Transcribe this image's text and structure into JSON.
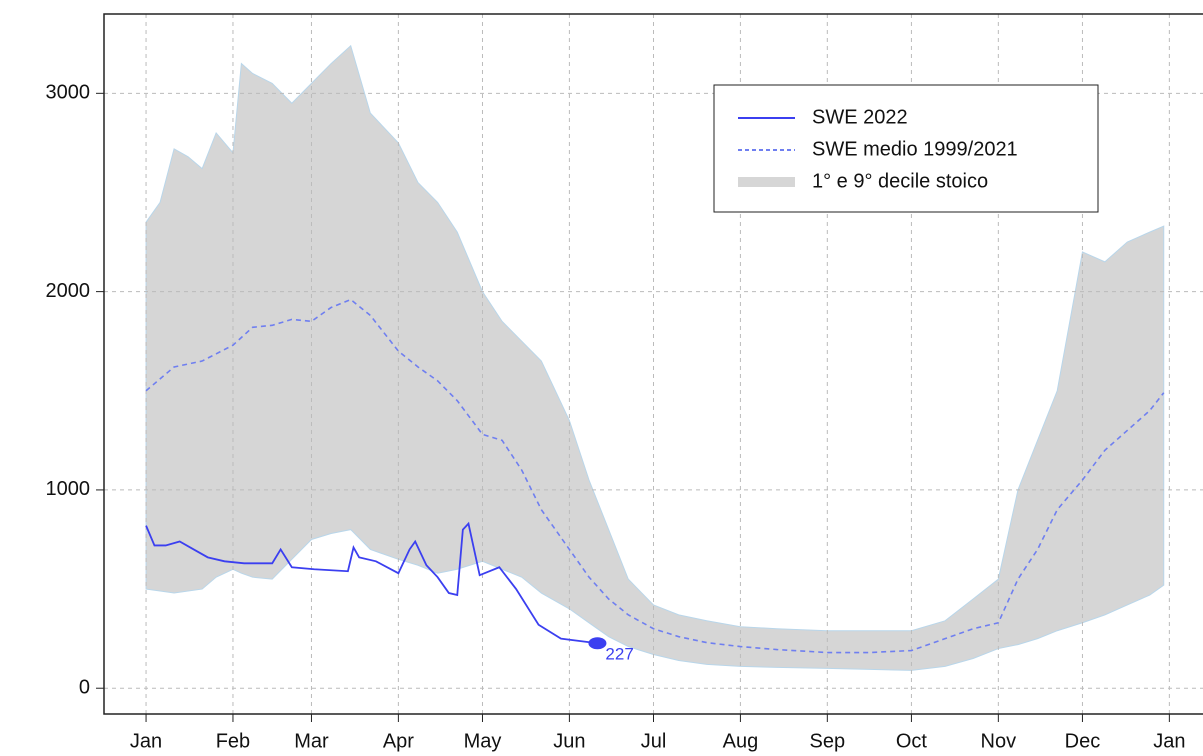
{
  "chart_data": {
    "type": "line",
    "xlim": [
      -15,
      377
    ],
    "ylim": [
      -130,
      3400
    ],
    "xticks": [
      {
        "value": 0,
        "label": "Jan"
      },
      {
        "value": 31,
        "label": "Feb"
      },
      {
        "value": 59,
        "label": "Mar"
      },
      {
        "value": 90,
        "label": "Apr"
      },
      {
        "value": 120,
        "label": "May"
      },
      {
        "value": 151,
        "label": "Jun"
      },
      {
        "value": 181,
        "label": "Jul"
      },
      {
        "value": 212,
        "label": "Aug"
      },
      {
        "value": 243,
        "label": "Sep"
      },
      {
        "value": 273,
        "label": "Oct"
      },
      {
        "value": 304,
        "label": "Nov"
      },
      {
        "value": 334,
        "label": "Dec"
      },
      {
        "value": 365,
        "label": "Jan"
      }
    ],
    "yticks": [
      0,
      1000,
      2000,
      3000
    ],
    "grid": true,
    "legend": "upper right",
    "band": {
      "name": "1° e 9° decile stoico",
      "color": "#d6d6d6",
      "x": [
        0,
        5,
        10,
        15,
        20,
        25,
        31,
        34,
        38,
        45,
        52,
        59,
        66,
        73,
        80,
        90,
        97,
        104,
        111,
        120,
        127,
        134,
        141,
        151,
        158,
        165,
        172,
        181,
        190,
        200,
        212,
        225,
        243,
        258,
        273,
        285,
        295,
        304,
        311,
        318,
        325,
        334,
        342,
        350,
        358,
        363
      ],
      "upper": [
        2350,
        2450,
        2720,
        2680,
        2620,
        2800,
        2700,
        3150,
        3100,
        3050,
        2950,
        3050,
        3150,
        3240,
        2900,
        2750,
        2550,
        2450,
        2300,
        2000,
        1850,
        1750,
        1650,
        1350,
        1050,
        800,
        550,
        420,
        370,
        340,
        310,
        300,
        290,
        290,
        290,
        340,
        450,
        550,
        1000,
        1250,
        1500,
        2200,
        2150,
        2250,
        2300,
        2330
      ],
      "lower": [
        500,
        490,
        480,
        490,
        500,
        560,
        600,
        580,
        560,
        550,
        650,
        750,
        780,
        800,
        700,
        650,
        620,
        580,
        600,
        640,
        600,
        560,
        480,
        400,
        330,
        260,
        210,
        170,
        140,
        120,
        110,
        105,
        100,
        95,
        90,
        110,
        150,
        200,
        220,
        250,
        290,
        330,
        370,
        420,
        470,
        520
      ]
    },
    "series": [
      {
        "name": "SWE medio 1999/2021",
        "color": "#6f7ff0",
        "dashed": true,
        "x": [
          0,
          5,
          10,
          20,
          31,
          38,
          45,
          52,
          59,
          66,
          73,
          80,
          90,
          97,
          104,
          111,
          120,
          127,
          134,
          141,
          151,
          158,
          165,
          172,
          181,
          190,
          200,
          212,
          225,
          243,
          258,
          273,
          285,
          295,
          304,
          311,
          318,
          325,
          334,
          342,
          350,
          358,
          363
        ],
        "values": [
          1500,
          1560,
          1620,
          1650,
          1730,
          1820,
          1830,
          1860,
          1850,
          1920,
          1960,
          1880,
          1700,
          1620,
          1550,
          1450,
          1280,
          1250,
          1100,
          900,
          700,
          560,
          450,
          370,
          300,
          260,
          230,
          210,
          195,
          180,
          180,
          190,
          250,
          300,
          330,
          550,
          700,
          900,
          1050,
          1200,
          1300,
          1400,
          1490
        ]
      },
      {
        "name": "SWE 2022",
        "color": "#3b3ff0",
        "x": [
          0,
          3,
          7,
          12,
          17,
          22,
          28,
          35,
          45,
          48,
          52,
          60,
          72,
          74,
          76,
          82,
          90,
          94,
          96,
          100,
          104,
          108,
          111,
          113,
          115,
          119,
          126,
          132,
          140,
          148,
          161
        ],
        "values": [
          820,
          720,
          720,
          740,
          700,
          660,
          640,
          630,
          630,
          700,
          610,
          600,
          590,
          710,
          660,
          640,
          580,
          700,
          740,
          620,
          560,
          480,
          470,
          800,
          830,
          570,
          610,
          500,
          320,
          250,
          227
        ]
      }
    ]
  }
}
